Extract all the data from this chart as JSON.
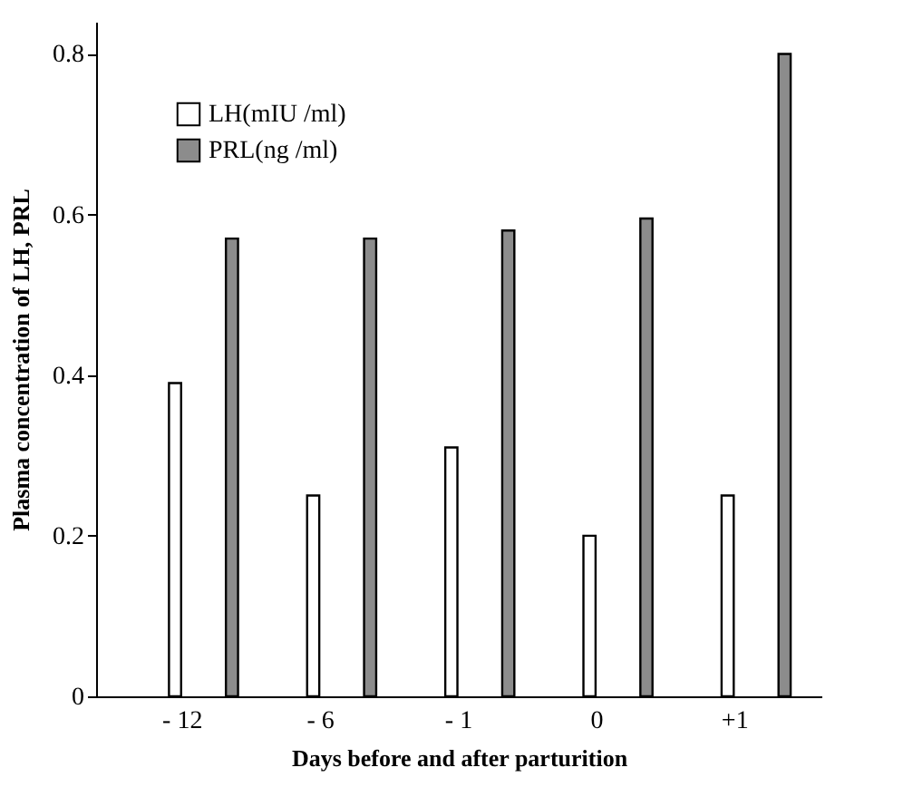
{
  "chart_data": {
    "type": "bar",
    "xlabel": "Days before and after parturition",
    "ylabel": "Plasma concentration of LH, PRL",
    "categories": [
      "- 12",
      "- 6",
      "- 1",
      "0",
      "+1"
    ],
    "series": [
      {
        "name": "LH(mIU /ml)",
        "color": "#ffffff",
        "values": [
          0.39,
          0.25,
          0.31,
          0.2,
          0.25
        ]
      },
      {
        "name": "PRL(ng /ml)",
        "color": "#8c8c8c",
        "values": [
          0.57,
          0.57,
          0.58,
          0.595,
          0.8
        ]
      }
    ],
    "ylim": [
      0,
      0.84
    ],
    "yticks": [
      0,
      0.2,
      0.4,
      0.6,
      0.8
    ],
    "grid": false,
    "legend": "top left"
  }
}
